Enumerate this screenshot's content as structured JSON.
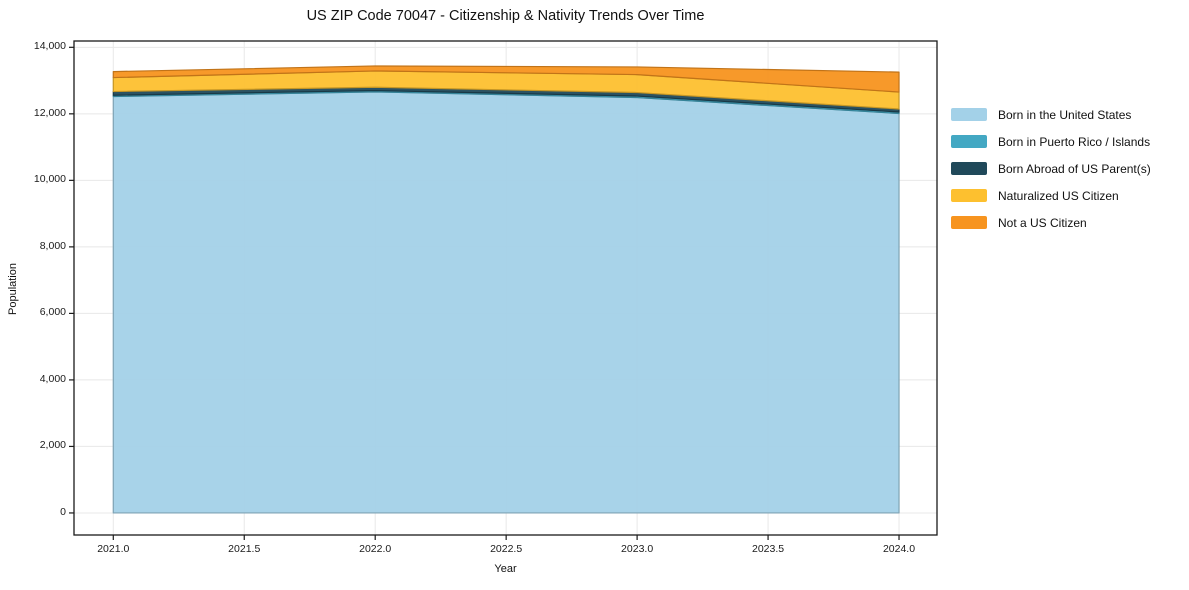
{
  "chart_data": {
    "type": "area",
    "stacked": true,
    "title": "US ZIP Code 70047 - Citizenship & Nativity Trends Over Time",
    "xlabel": "Year",
    "ylabel": "Population",
    "x": [
      2021,
      2022,
      2023,
      2024
    ],
    "series": [
      {
        "name": "Born in the United States",
        "color": "#a3d1e8",
        "values": [
          12520,
          12660,
          12490,
          12010
        ]
      },
      {
        "name": "Born in Puerto Rico / Islands",
        "color": "#43a8c3",
        "values": [
          40,
          40,
          45,
          45
        ]
      },
      {
        "name": "Born Abroad of US Parent(s)",
        "color": "#20495a",
        "values": [
          110,
          100,
          105,
          90
        ]
      },
      {
        "name": "Naturalized US Citizen",
        "color": "#fdc02f",
        "values": [
          420,
          490,
          540,
          510
        ]
      },
      {
        "name": "Not a US Citizen",
        "color": "#f7941f",
        "values": [
          180,
          150,
          230,
          600
        ]
      }
    ],
    "xlim": [
      2020.85,
      2024.145
    ],
    "ylim": [
      -663,
      14190
    ],
    "xticks": [
      2021.0,
      2021.5,
      2022.0,
      2022.5,
      2023.0,
      2023.5,
      2024.0
    ],
    "xtick_labels": [
      "2021.0",
      "2021.5",
      "2022.0",
      "2022.5",
      "2023.0",
      "2023.5",
      "2024.0"
    ],
    "yticks": [
      0,
      2000,
      4000,
      6000,
      8000,
      10000,
      12000,
      14000
    ],
    "ytick_labels": [
      "0",
      "2,000",
      "4,000",
      "6,000",
      "8,000",
      "10,000",
      "12,000",
      "14,000"
    ],
    "grid": true,
    "grid_color": "#e8e8e8",
    "frame_color": "#1a1a1a",
    "legend_position": "right"
  }
}
